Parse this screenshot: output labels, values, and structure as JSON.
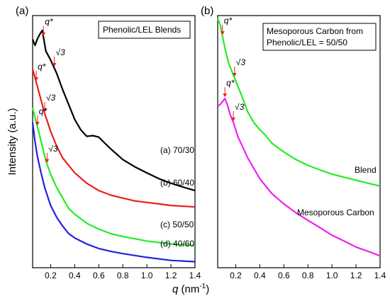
{
  "chart_data": [
    {
      "panel_label": "(a)",
      "type": "line",
      "title": "",
      "legend_box": "Phenolic/LEL Blends",
      "xlim": [
        0.05,
        1.4
      ],
      "ylim": [
        0,
        100
      ],
      "log_y": false,
      "grid": false,
      "xticks": [
        "0.2",
        "0.4",
        "0.6",
        "0.8",
        "1.0",
        "1.2",
        "1.4"
      ],
      "xtick_values": [
        0.2,
        0.4,
        0.6,
        0.8,
        1.0,
        1.2,
        1.4
      ],
      "series": [
        {
          "name": "(a) 70/30",
          "color": "#000000",
          "x": [
            0.05,
            0.07,
            0.09,
            0.11,
            0.13,
            0.16,
            0.2,
            0.25,
            0.3,
            0.35,
            0.4,
            0.45,
            0.5,
            0.55,
            0.6,
            0.65,
            0.7,
            0.8,
            0.9,
            1.0,
            1.1,
            1.2,
            1.3,
            1.4
          ],
          "y": [
            90.6,
            88.2,
            90.8,
            92.6,
            94.1,
            85.9,
            82.4,
            77.1,
            70.6,
            64.7,
            58.8,
            54.7,
            52.1,
            52.4,
            51.8,
            49.4,
            47.1,
            42.9,
            40.0,
            37.6,
            35.3,
            33.5,
            32.0,
            30.6
          ]
        },
        {
          "name": "(b) 60/40",
          "color": "#e8211a",
          "x": [
            0.05,
            0.07,
            0.09,
            0.12,
            0.15,
            0.2,
            0.25,
            0.3,
            0.4,
            0.5,
            0.6,
            0.7,
            0.8,
            0.9,
            1.0,
            1.1,
            1.2,
            1.3,
            1.4
          ],
          "y": [
            78.8,
            75.3,
            71.8,
            66.5,
            61.2,
            54.1,
            48.2,
            43.5,
            37.6,
            33.5,
            30.6,
            28.8,
            27.6,
            26.5,
            25.9,
            25.3,
            24.7,
            24.4,
            24.1
          ]
        },
        {
          "name": "(c) 50/50",
          "color": "#22ee22",
          "x": [
            0.05,
            0.07,
            0.1,
            0.13,
            0.16,
            0.2,
            0.25,
            0.3,
            0.35,
            0.4,
            0.45,
            0.5,
            0.6,
            0.7,
            0.8,
            1.0,
            1.2,
            1.4
          ],
          "y": [
            63.5,
            59.4,
            54.1,
            48.2,
            42.4,
            37.1,
            31.8,
            27.6,
            23.5,
            21.2,
            19.4,
            17.6,
            15.3,
            13.5,
            12.4,
            10.6,
            9.4,
            8.8
          ]
        },
        {
          "name": "(d) 40/60",
          "color": "#2222dd",
          "x": [
            0.05,
            0.07,
            0.09,
            0.12,
            0.15,
            0.2,
            0.25,
            0.3,
            0.35,
            0.4,
            0.5,
            0.6,
            0.7,
            0.8,
            1.0,
            1.2,
            1.4
          ],
          "y": [
            57.6,
            50.0,
            44.1,
            37.6,
            31.8,
            24.7,
            20.0,
            16.5,
            13.5,
            11.8,
            9.4,
            7.6,
            6.5,
            5.6,
            4.1,
            2.9,
            2.4
          ]
        }
      ],
      "annotations": [
        {
          "text": "q*",
          "series": 0,
          "x": 0.14
        },
        {
          "text": "√3",
          "series": 0,
          "x": 0.23
        },
        {
          "text": "q*",
          "series": 1,
          "x": 0.08
        },
        {
          "text": "√3",
          "series": 1,
          "x": 0.15
        },
        {
          "text": "q*",
          "series": 2,
          "x": 0.09
        },
        {
          "text": "√3",
          "series": 2,
          "x": 0.17
        }
      ]
    },
    {
      "panel_label": "(b)",
      "type": "line",
      "title": "",
      "legend_box": [
        "Mesoporous Carbon from",
        "Phenolic/LEL = 50/50"
      ],
      "xlim": [
        0.05,
        1.4
      ],
      "ylim": [
        0,
        100
      ],
      "log_y": false,
      "grid": false,
      "xticks": [
        "0.2",
        "0.4",
        "0.6",
        "0.8",
        "1.0",
        "1.2",
        "1.4"
      ],
      "xtick_values": [
        0.2,
        0.4,
        0.6,
        0.8,
        1.0,
        1.2,
        1.4
      ],
      "series": [
        {
          "name": "Blend",
          "color": "#22ee22",
          "x": [
            0.05,
            0.07,
            0.09,
            0.11,
            0.14,
            0.17,
            0.2,
            0.25,
            0.3,
            0.35,
            0.4,
            0.45,
            0.5,
            0.6,
            0.7,
            0.8,
            0.9,
            1.0,
            1.1,
            1.2,
            1.3,
            1.4
          ],
          "y": [
            98.8,
            96.5,
            91.8,
            87.1,
            81.2,
            77.6,
            74.1,
            68.2,
            61.8,
            57.6,
            54.7,
            52.4,
            49.4,
            45.9,
            42.9,
            40.6,
            38.8,
            37.1,
            35.9,
            34.7,
            33.5,
            32.4
          ]
        },
        {
          "name": "Mesoporous Carbon",
          "color": "#ee22ee",
          "x": [
            0.05,
            0.07,
            0.09,
            0.11,
            0.13,
            0.15,
            0.18,
            0.22,
            0.3,
            0.4,
            0.5,
            0.6,
            0.7,
            0.8,
            0.9,
            1.0,
            1.1,
            1.2,
            1.3,
            1.4
          ],
          "y": [
            64.1,
            64.7,
            65.9,
            67.1,
            64.7,
            61.2,
            57.6,
            51.8,
            43.5,
            35.3,
            29.4,
            25.3,
            21.8,
            18.8,
            15.9,
            12.9,
            10.6,
            8.2,
            6.5,
            4.7
          ]
        }
      ],
      "annotations": [
        {
          "text": "q*",
          "series": 0,
          "x": 0.09
        },
        {
          "text": "√3",
          "series": 0,
          "x": 0.19
        },
        {
          "text": "q*",
          "series": 1,
          "x": 0.11
        },
        {
          "text": "√3",
          "series": 1,
          "x": 0.18
        }
      ]
    }
  ],
  "series_labels_a": [
    "(a) 70/30",
    "(b) 60/40",
    "(c) 50/50",
    "(d) 40/60"
  ],
  "series_labels_b": [
    "Blend",
    "Mesoporous Carbon"
  ],
  "ylabel": "Intensity (a.u.)",
  "xlabel_main": "q",
  "xlabel_unit": " (nm",
  "xlabel_exp": "-1",
  "xlabel_close": ")"
}
